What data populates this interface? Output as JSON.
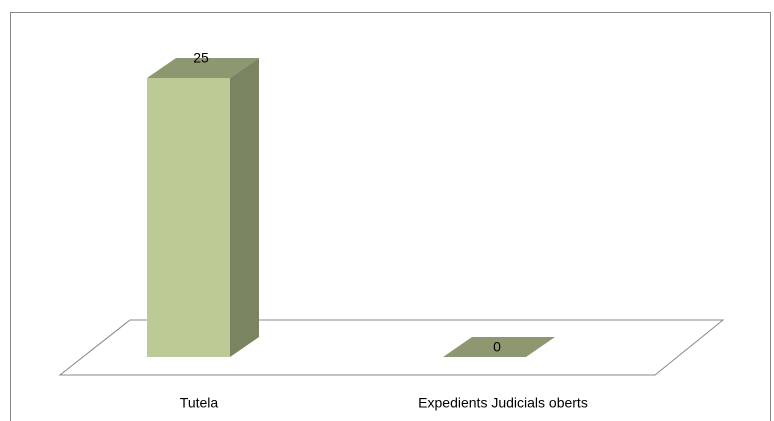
{
  "chart_data": {
    "type": "bar3d",
    "categories": [
      "Tutela",
      "Expedients Judicials oberts"
    ],
    "values": [
      25,
      0
    ],
    "color": "#bccb95"
  }
}
